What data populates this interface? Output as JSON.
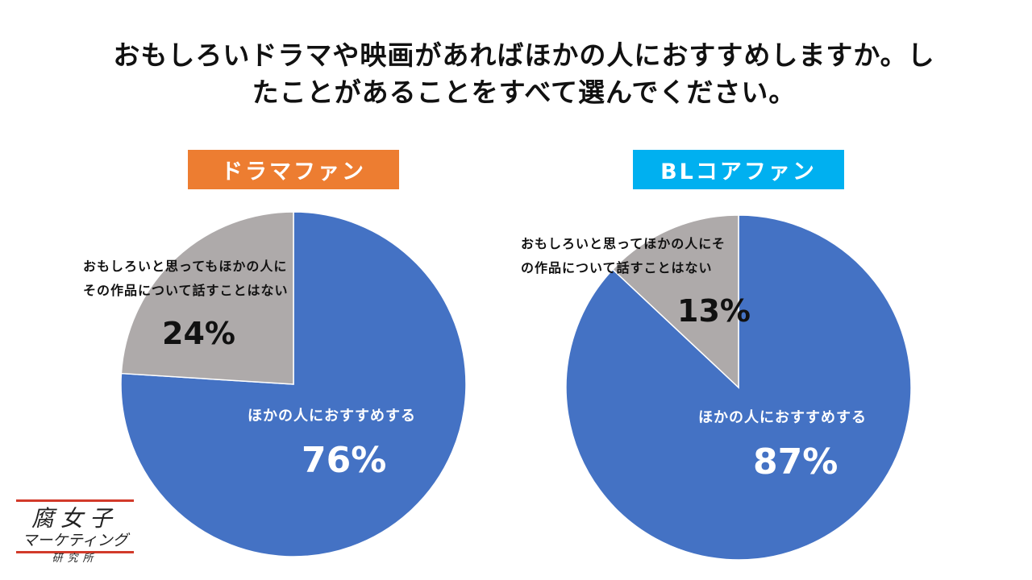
{
  "title_lines": [
    "おもしろいドラマや映画があればほかの人におすすめしますか。し",
    "たことがあることをすべて選んでください。"
  ],
  "colors": {
    "recommend": "#4472c4",
    "not_recommend": "#aeaaaa",
    "drama_badge": "#ed7d31",
    "bl_badge": "#00b0f0"
  },
  "chart_data": [
    {
      "type": "pie",
      "title": "ドラマファン",
      "slices": [
        {
          "label": "ほかの人におすすめする",
          "value": 76,
          "display": "76%",
          "color": "#4472c4"
        },
        {
          "label_lines": [
            "おもしろいと思ってもほかの人に",
            "その作品について話すことはない"
          ],
          "value": 24,
          "display": "24%",
          "color": "#aeaaaa"
        }
      ]
    },
    {
      "type": "pie",
      "title": "BLコアファン",
      "slices": [
        {
          "label": "ほかの人におすすめする",
          "value": 87,
          "display": "87%",
          "color": "#4472c4"
        },
        {
          "label_lines": [
            "おもしろいと思ってほかの人にそ",
            "の作品について話すことはない"
          ],
          "value": 13,
          "display": "13%",
          "color": "#aeaaaa"
        }
      ]
    }
  ],
  "logo": {
    "line1": "腐女子",
    "line2": "マーケティング",
    "line3": "研究所"
  }
}
